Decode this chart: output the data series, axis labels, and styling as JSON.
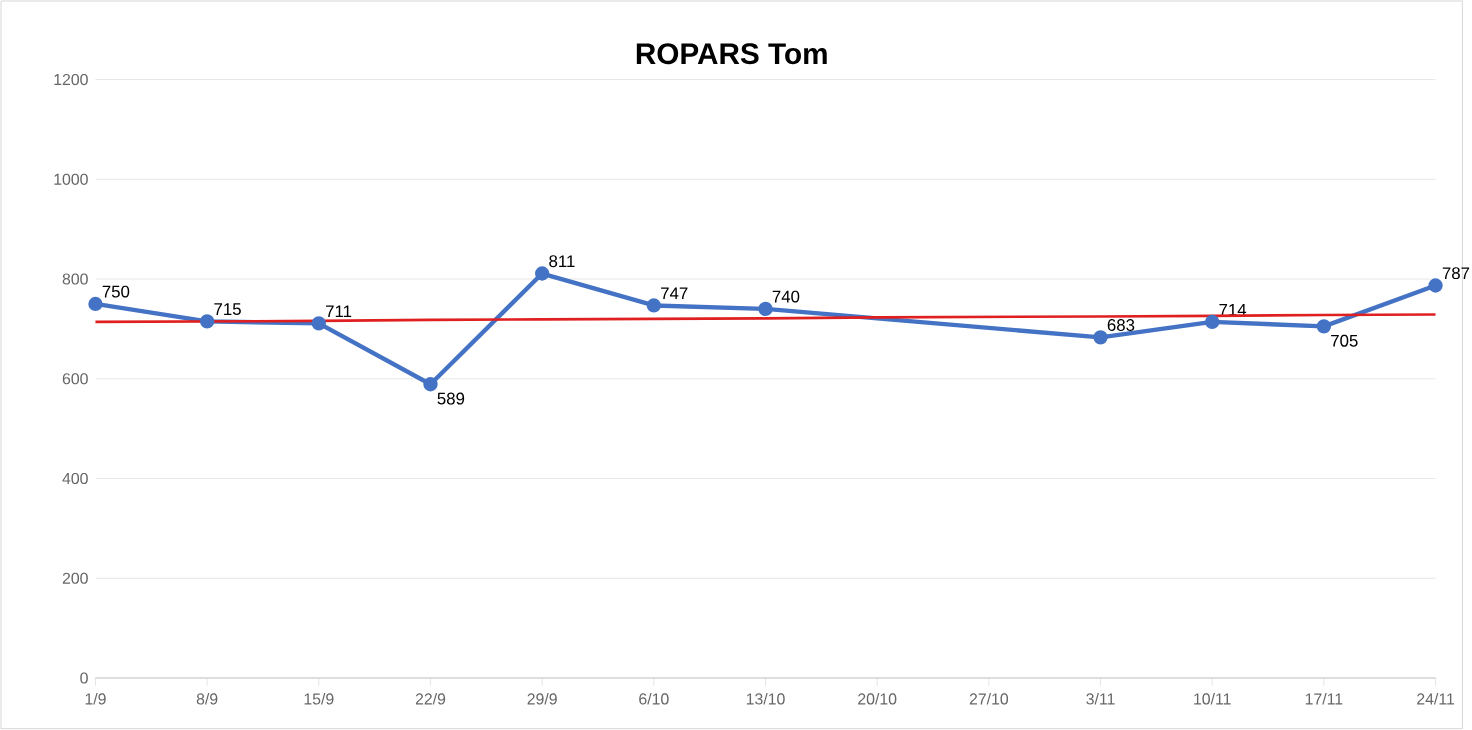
{
  "chart_data": {
    "type": "line",
    "title": "ROPARS Tom",
    "categories": [
      "1/9",
      "8/9",
      "15/9",
      "22/9",
      "29/9",
      "6/10",
      "13/10",
      "20/10",
      "27/10",
      "3/11",
      "10/11",
      "17/11",
      "24/11"
    ],
    "series": [
      {
        "color": "#4472c4",
        "marker": "circle",
        "values": [
          750,
          715,
          711,
          589,
          811,
          747,
          740,
          null,
          null,
          683,
          714,
          705,
          787
        ],
        "value_labels": [
          "750",
          "715",
          "711",
          "589",
          "811",
          "747",
          "740",
          null,
          null,
          "683",
          "714",
          "705",
          "787"
        ]
      },
      {
        "color": "#e02020",
        "marker": "none",
        "values": [
          714,
          715,
          716,
          718,
          719,
          720,
          721,
          723,
          724,
          725,
          726,
          728,
          729
        ]
      }
    ],
    "ylim": [
      0,
      1200
    ],
    "yticks": [
      0,
      200,
      400,
      600,
      800,
      1000,
      1200
    ],
    "grid": "y"
  }
}
